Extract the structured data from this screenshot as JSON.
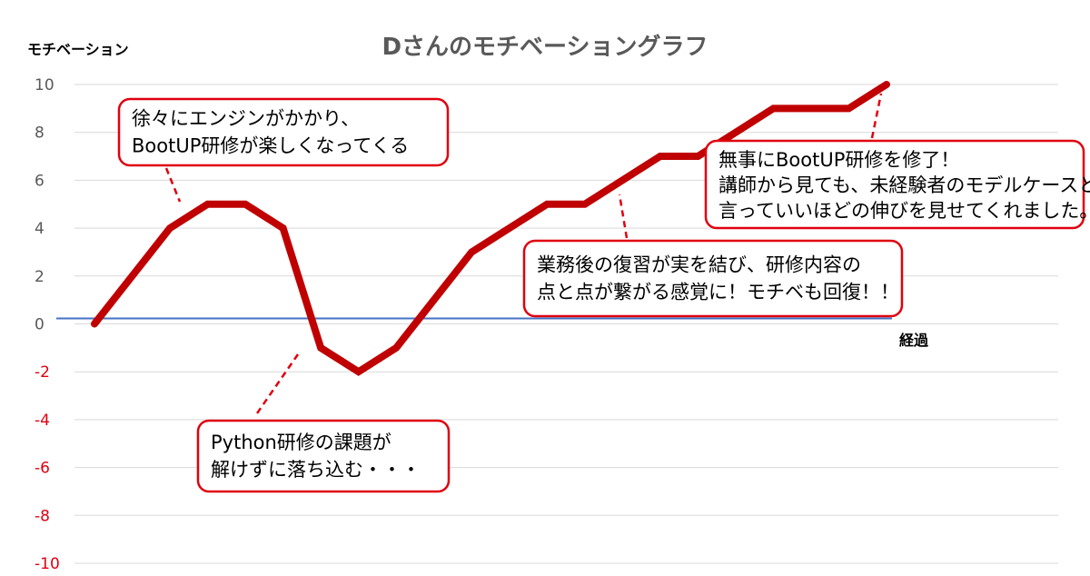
{
  "chart_data": {
    "type": "line",
    "title": "Dさんのモチベーショングラフ",
    "ylabel": "モチベーション",
    "xlabel": "経過",
    "ylim": [
      -10,
      10
    ],
    "yticks": [
      10,
      8,
      6,
      4,
      2,
      0,
      -2,
      -4,
      -6,
      -8,
      -10
    ],
    "grid": true,
    "x": [
      0,
      1,
      2,
      3,
      4,
      5,
      6,
      7,
      8,
      9,
      10,
      11,
      12,
      13,
      14,
      15,
      16,
      17,
      18,
      19,
      20,
      21
    ],
    "series": [
      {
        "values": [
          0,
          2,
          4,
          5,
          5,
          4,
          -1,
          -2,
          -1,
          1,
          3,
          4,
          5,
          5,
          6,
          7,
          7,
          8,
          9,
          9,
          9,
          10
        ]
      }
    ],
    "baseline": 0,
    "annotations": [
      {
        "lines": [
          "徐々にエンジンがかかり、",
          "BootUP研修が楽しくなってくる"
        ],
        "x": 2
      },
      {
        "lines": [
          "Python研修の課題が",
          "解けずに落ち込む・・・"
        ],
        "x": 5.7
      },
      {
        "lines": [
          "業務後の復習が実を結び、研修内容の",
          "点と点が繋がる感覚に！モチベも回復！！"
        ],
        "x": 14.3
      },
      {
        "lines": [
          "無事にBootUP研修を修了！",
          "講師から見ても、未経験者のモデルケースと",
          "言っていいほどの伸びを見せてくれました。"
        ],
        "x": 21
      }
    ]
  },
  "colors": {
    "line": "#c00000",
    "baseline": "#4472c4",
    "grid": "#d9d9d9",
    "positive_tick": "#595959",
    "negative_tick": "#e0000f",
    "callout_border": "#e0000f"
  }
}
